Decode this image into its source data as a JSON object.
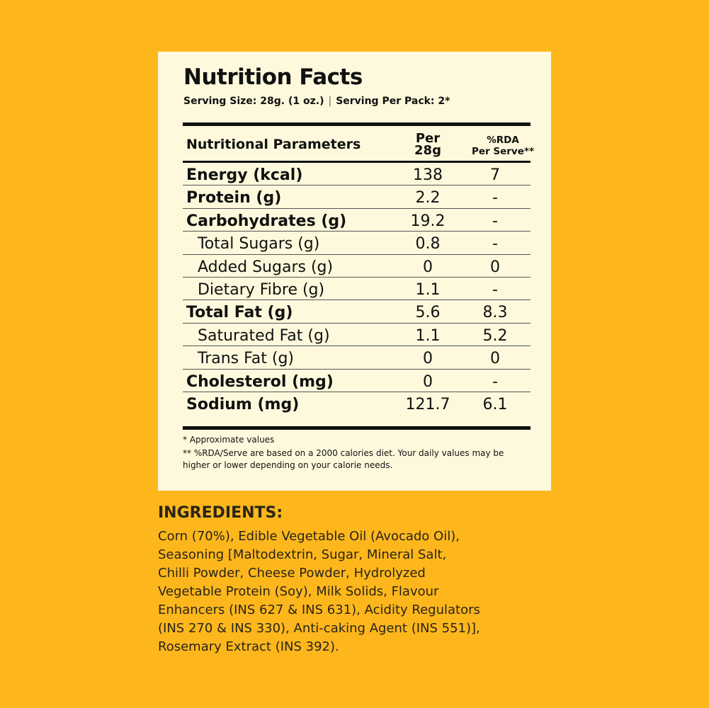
{
  "nutrition": {
    "title": "Nutrition Facts",
    "serving_size": "Serving Size: 28g. (1 oz.)",
    "separator": "|",
    "serving_per_pack": "Serving Per Pack: 2*",
    "header": {
      "param": "Nutritional Parameters",
      "per_line1": "Per",
      "per_line2": "28g",
      "rda_line1": "%RDA",
      "rda_line2": "Per Serve**"
    },
    "rows": [
      {
        "name": "Energy (kcal)",
        "value": "138",
        "rda": "7"
      },
      {
        "name": "Protein (g)",
        "value": "2.2",
        "rda": "-"
      },
      {
        "name": "Carbohydrates (g)",
        "value": "19.2",
        "rda": "-"
      },
      {
        "name": "Total Sugars (g)",
        "value": "0.8",
        "rda": "-"
      },
      {
        "name": "Added Sugars (g)",
        "value": "0",
        "rda": "0"
      },
      {
        "name": "Dietary Fibre (g)",
        "value": "1.1",
        "rda": "-"
      },
      {
        "name": "Total Fat (g)",
        "value": "5.6",
        "rda": "8.3"
      },
      {
        "name": "Saturated Fat (g)",
        "value": "1.1",
        "rda": "5.2"
      },
      {
        "name": "Trans Fat (g)",
        "value": "0",
        "rda": "0"
      },
      {
        "name": "Cholesterol (mg)",
        "value": "0",
        "rda": "-"
      },
      {
        "name": "Sodium (mg)",
        "value": "121.7",
        "rda": "6.1"
      }
    ],
    "note_approx": "* Approximate values",
    "note_rda": "** %RDA/Serve are based on a 2000 calories diet. Your daily values may be higher or lower depending on your calorie needs."
  },
  "ingredients": {
    "title": "INGREDIENTS:",
    "lines": [
      "Corn (70%), Edible Vegetable Oil (Avocado Oil),",
      "Seasoning [Maltodextrin, Sugar, Mineral Salt,",
      "Chilli Powder, Cheese Powder, Hydrolyzed",
      "Vegetable Protein (Soy), Milk Solids, Flavour",
      "Enhancers (INS 627 & INS 631), Acidity Regulators",
      "(INS 270 & INS 330), Anti-caking Agent (INS 551)],",
      "Rosemary Extract (INS 392)."
    ]
  },
  "colors": {
    "background": "#FDB71C",
    "panel": "#FEF9DC",
    "text": "#111111",
    "ingredients_text": "#2A2419"
  }
}
